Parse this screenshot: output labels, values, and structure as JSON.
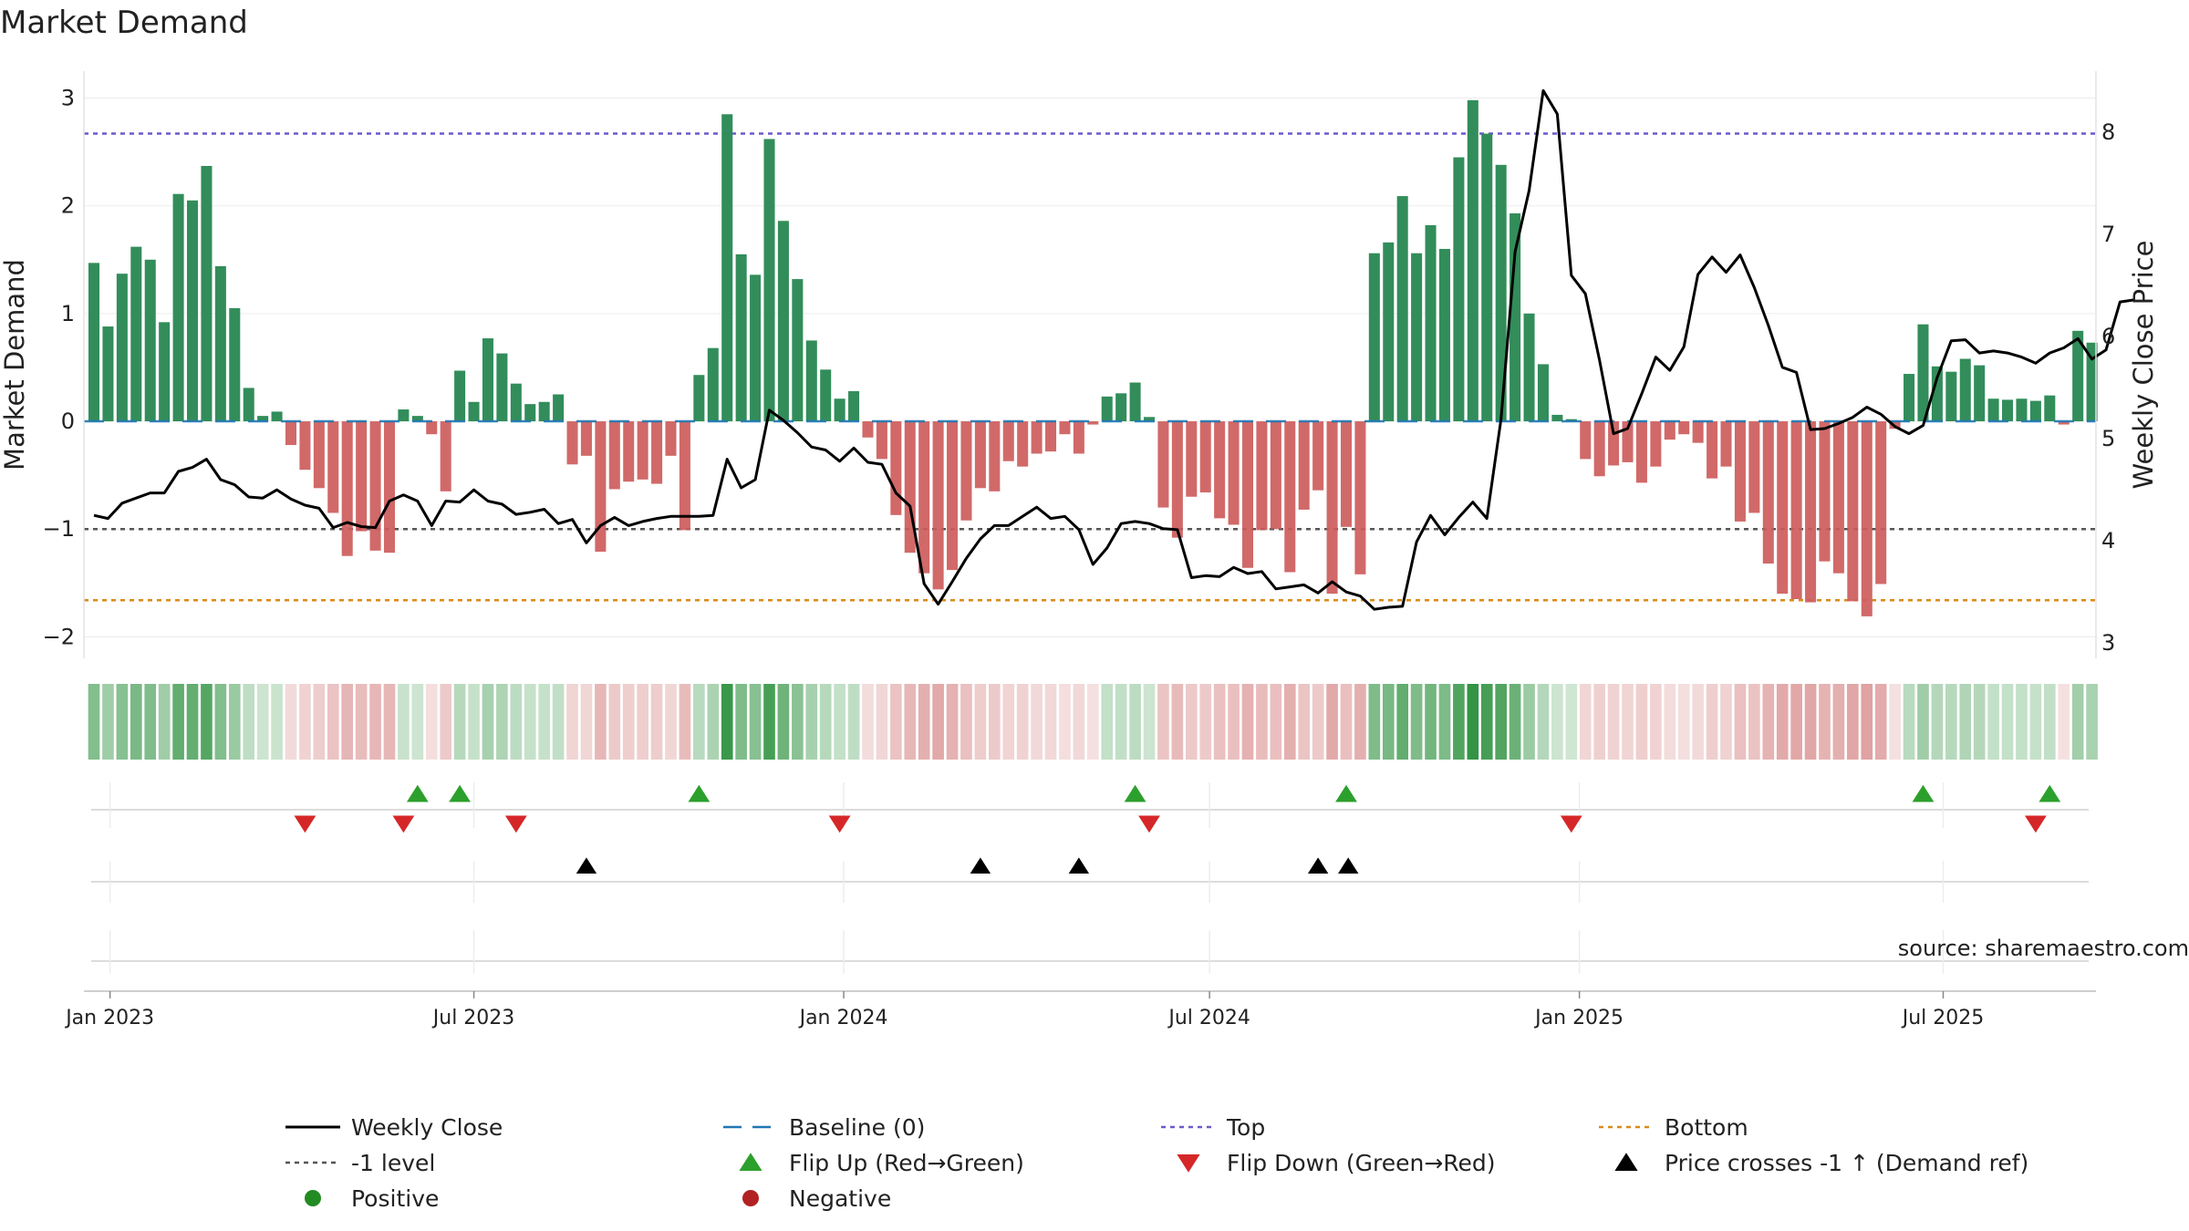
{
  "chart_data": {
    "type": "bar",
    "title": "Market Demand",
    "ylabel": "Market Demand",
    "ylabel_right": "Weekly Close Price",
    "ylim": [
      -2.2,
      3.25
    ],
    "ylim_right": [
      2.85,
      8.6
    ],
    "yticks": [
      3,
      2,
      1,
      0,
      -1,
      -2
    ],
    "yticks_right": [
      8,
      7,
      6,
      5,
      4,
      3
    ],
    "date_range": [
      "2022-12-19",
      "2025-09-15"
    ],
    "xticks": [
      {
        "date": "2023-01-01",
        "label": "Jan 2023"
      },
      {
        "date": "2023-07-01",
        "label": "Jul 2023"
      },
      {
        "date": "2024-01-01",
        "label": "Jan 2024"
      },
      {
        "date": "2024-07-01",
        "label": "Jul 2024"
      },
      {
        "date": "2025-01-01",
        "label": "Jan 2025"
      },
      {
        "date": "2025-07-01",
        "label": "Jul 2025"
      }
    ],
    "reference_lines": {
      "top": 2.67,
      "bottom": -1.66,
      "minus_one": -1,
      "baseline": 0
    },
    "start_date": "2022-12-24",
    "interval_days": 7,
    "demand": [
      1.47,
      0.88,
      1.37,
      1.62,
      1.5,
      0.92,
      2.11,
      2.05,
      2.37,
      1.44,
      1.05,
      0.31,
      0.05,
      0.09,
      -0.22,
      -0.45,
      -0.62,
      -0.85,
      -1.25,
      -1.02,
      -1.2,
      -1.22,
      0.11,
      0.05,
      -0.12,
      -0.65,
      0.47,
      0.18,
      0.77,
      0.63,
      0.35,
      0.16,
      0.18,
      0.25,
      -0.4,
      -0.32,
      -1.21,
      -0.63,
      -0.56,
      -0.54,
      -0.58,
      -0.32,
      -1.01,
      0.43,
      0.68,
      2.85,
      1.55,
      1.36,
      2.62,
      1.86,
      1.32,
      0.75,
      0.48,
      0.21,
      0.28,
      -0.15,
      -0.35,
      -0.87,
      -1.22,
      -1.41,
      -1.56,
      -1.38,
      -0.92,
      -0.62,
      -0.65,
      -0.37,
      -0.42,
      -0.3,
      -0.28,
      -0.12,
      -0.3,
      -0.03,
      0.23,
      0.26,
      0.36,
      0.04,
      -0.8,
      -1.08,
      -0.7,
      -0.66,
      -0.9,
      -0.96,
      -1.36,
      -1.01,
      -1.0,
      -1.4,
      -0.82,
      -0.64,
      -1.6,
      -0.98,
      -1.42,
      1.56,
      1.66,
      2.09,
      1.56,
      1.82,
      1.6,
      2.45,
      2.98,
      2.67,
      2.38,
      1.93,
      1.0,
      0.53,
      0.06,
      0.02,
      -0.35,
      -0.51,
      -0.41,
      -0.38,
      -0.57,
      -0.42,
      -0.17,
      -0.12,
      -0.2,
      -0.53,
      -0.42,
      -0.93,
      -0.85,
      -1.32,
      -1.6,
      -1.65,
      -1.68,
      -1.3,
      -1.41,
      -1.67,
      -1.81,
      -1.51,
      -0.07,
      0.44,
      0.9,
      0.51,
      0.46,
      0.58,
      0.52,
      0.21,
      0.2,
      0.21,
      0.19,
      0.24,
      -0.03,
      0.84,
      0.73
    ],
    "close": [
      4.25,
      4.22,
      4.37,
      4.42,
      4.47,
      4.47,
      4.68,
      4.72,
      4.8,
      4.6,
      4.55,
      4.43,
      4.42,
      4.5,
      4.41,
      4.35,
      4.32,
      4.13,
      4.18,
      4.14,
      4.13,
      4.39,
      4.45,
      4.39,
      4.15,
      4.39,
      4.38,
      4.5,
      4.39,
      4.36,
      4.26,
      4.28,
      4.31,
      4.17,
      4.21,
      3.98,
      4.15,
      4.23,
      4.15,
      4.19,
      4.22,
      4.24,
      4.24,
      4.24,
      4.25,
      4.8,
      4.52,
      4.6,
      5.28,
      5.18,
      5.06,
      4.92,
      4.89,
      4.78,
      4.91,
      4.77,
      4.75,
      4.47,
      4.34,
      3.58,
      3.38,
      3.6,
      3.83,
      4.02,
      4.15,
      4.15,
      4.24,
      4.33,
      4.22,
      4.24,
      4.11,
      3.77,
      3.93,
      4.17,
      4.19,
      4.17,
      4.12,
      4.11,
      3.64,
      3.66,
      3.65,
      3.74,
      3.68,
      3.7,
      3.53,
      3.55,
      3.57,
      3.49,
      3.6,
      3.5,
      3.46,
      3.33,
      3.35,
      3.36,
      3.99,
      4.25,
      4.06,
      4.23,
      4.38,
      4.22,
      5.19,
      6.83,
      7.43,
      8.41,
      8.18,
      6.6,
      6.42,
      5.77,
      5.05,
      5.1,
      5.44,
      5.8,
      5.67,
      5.9,
      6.61,
      6.78,
      6.63,
      6.8,
      6.48,
      6.11,
      5.7,
      5.65,
      5.09,
      5.1,
      5.15,
      5.21,
      5.31,
      5.24,
      5.12,
      5.05,
      5.13,
      5.6,
      5.96,
      5.97,
      5.84,
      5.86,
      5.84,
      5.8,
      5.74,
      5.84,
      5.89,
      5.98,
      5.78,
      5.87,
      6.34,
      6.36
    ],
    "series_labels": [
      "Weekly Close",
      "Baseline (0)",
      "Top",
      "Bottom",
      "-1 level",
      "Flip Up (Red→Green)",
      "Flip Down (Green→Red)",
      "Price crosses -1 ↑ (Demand ref)",
      "Positive",
      "Negative"
    ],
    "events": {
      "flip_up": [
        "2023-06-03",
        "2023-06-24",
        "2023-10-21",
        "2024-05-25",
        "2024-09-07",
        "2025-06-21",
        "2025-08-23"
      ],
      "flip_down": [
        "2023-04-08",
        "2023-05-27",
        "2023-07-22",
        "2023-12-30",
        "2024-06-01",
        "2024-12-28",
        "2025-08-16"
      ],
      "price_cross": [
        "2023-08-26",
        "2024-03-09",
        "2024-04-27",
        "2024-08-24",
        "2024-09-08"
      ]
    },
    "annotation": "source: sharemaestro.com"
  },
  "legend": {
    "items": [
      {
        "key": "close",
        "label": "Weekly Close"
      },
      {
        "key": "baseline",
        "label": "Baseline (0)"
      },
      {
        "key": "top",
        "label": "Top"
      },
      {
        "key": "bottom",
        "label": "Bottom"
      },
      {
        "key": "minus_one",
        "label": "-1 level"
      },
      {
        "key": "flip_up",
        "label": "Flip Up (Red→Green)"
      },
      {
        "key": "flip_down",
        "label": "Flip Down (Green→Red)"
      },
      {
        "key": "price_cross",
        "label": "Price crosses -1 ↑ (Demand ref)"
      },
      {
        "key": "positive",
        "label": "Positive"
      },
      {
        "key": "negative",
        "label": "Negative"
      }
    ]
  },
  "colors": {
    "positive_bar": "#2e8b57",
    "negative_bar": "#cd5c5c",
    "close_line": "#000000",
    "baseline": "#1f77b4",
    "top": "#6a5acd",
    "bottom": "#d98b1a",
    "minus_one": "#555555",
    "flip_up": "#2ca02c",
    "flip_down": "#d62728",
    "price_cross": "#000000",
    "positive_dot": "#228b22",
    "negative_dot": "#b22222",
    "source_text": "#888888"
  }
}
